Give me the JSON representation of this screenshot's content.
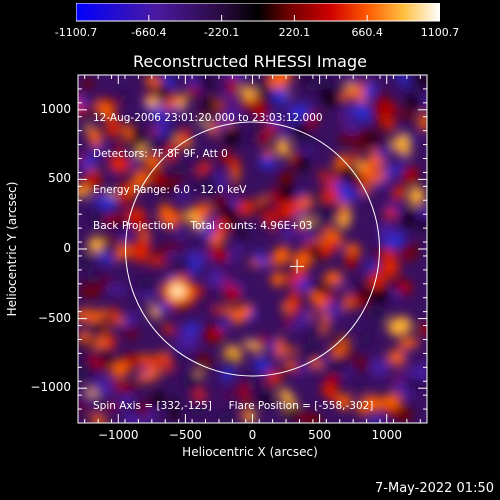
{
  "chart_data": {
    "type": "heatmap",
    "title": "Reconstructed RHESSI Image",
    "xlabel": "Heliocentric X (arcsec)",
    "ylabel": "Heliocentric Y (arcsec)",
    "xlim": [
      -1300,
      1300
    ],
    "ylim": [
      -1250,
      1250
    ],
    "x_ticks": [
      -1000,
      -500,
      0,
      500,
      1000
    ],
    "y_ticks": [
      -1000,
      -500,
      0,
      500,
      1000
    ],
    "colorbar": {
      "range": [
        -1100.7,
        1100.7
      ],
      "tick_labels": [
        "-1100.7",
        "-660.4",
        "-220.1",
        "220.1",
        "660.4",
        "1100.7"
      ],
      "tick_values": [
        -1100.7,
        -660.4,
        -220.1,
        220.1,
        660.4,
        1100.7
      ]
    },
    "annotations": [
      "12-Aug-2006 23:01:20.000 to 23:03:12.000",
      "Detectors: 7F 8F 9F, Att 0",
      "Energy Range: 6.0 - 12.0 keV",
      "Back Projection     Total counts: 4.96E+03",
      "Spin Axis = [332,-125]     Flare Position = [-558,-302]"
    ],
    "solar_limb_radius_arcsec": 946,
    "spin_axis": [
      332,
      -125
    ],
    "flare_position": [
      -558,
      -302
    ],
    "colors": {
      "background": "#000000",
      "foreground": "#ffffff"
    }
  },
  "footer": {
    "date": "7-May-2022 01:50"
  }
}
